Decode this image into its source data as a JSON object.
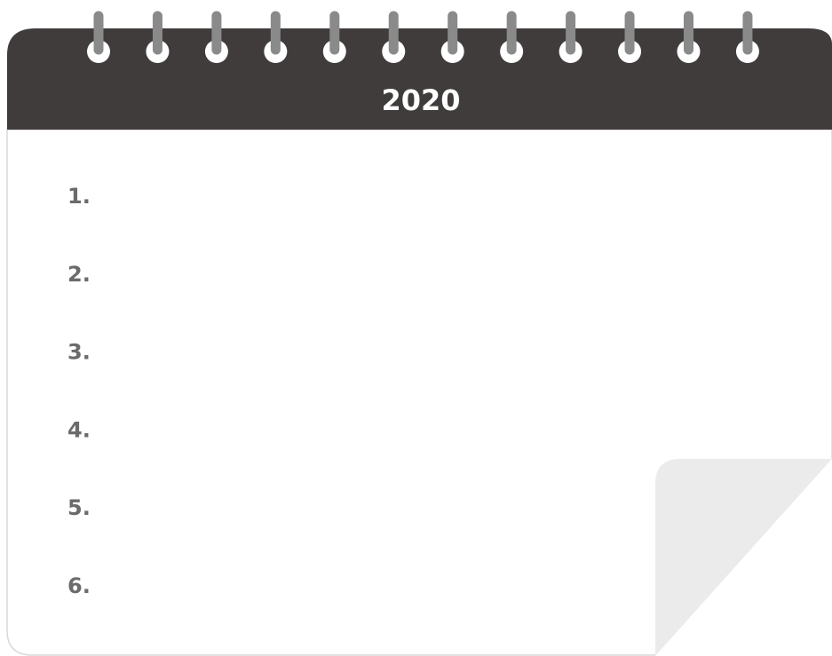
{
  "header": {
    "title": "2020"
  },
  "list": {
    "items": [
      "1.",
      "2.",
      "3.",
      "4.",
      "5.",
      "6."
    ]
  }
}
